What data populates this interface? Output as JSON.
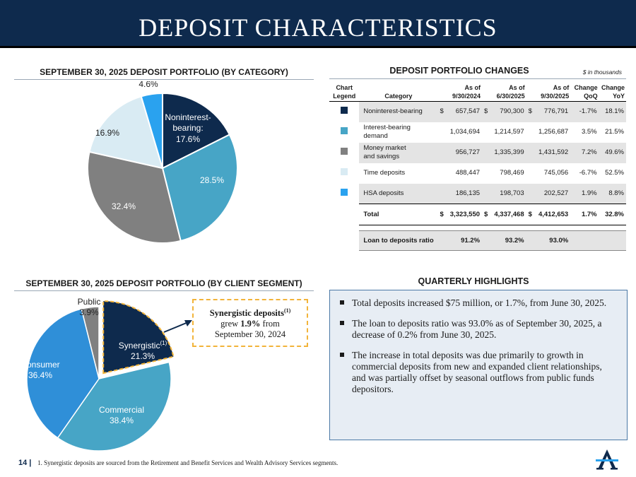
{
  "title": "DEPOSIT CHARACTERISTICS",
  "category_chart_title": "SEPTEMBER 30, 2025 DEPOSIT PORTFOLIO (BY CATEGORY)",
  "segment_chart_title": "SEPTEMBER 30, 2025 DEPOSIT PORTFOLIO (BY CLIENT SEGMENT)",
  "changes_title": "DEPOSIT PORTFOLIO CHANGES",
  "units_note": "$ in thousands",
  "highlights_title": "QUARTERLY HIGHLIGHTS",
  "chart_data": [
    {
      "type": "pie",
      "title": "SEPTEMBER 30, 2025 DEPOSIT PORTFOLIO (BY CATEGORY)",
      "slices": [
        {
          "label": "Noninterest-bearing:",
          "label_line1": "Noninterest-",
          "label_line2": "bearing:",
          "value_text": "17.6%",
          "value": 17.6,
          "color": "#0e2a4d"
        },
        {
          "label": "",
          "value_text": "28.5%",
          "value": 28.5,
          "color": "#47a5c6"
        },
        {
          "label": "",
          "value_text": "32.4%",
          "value": 32.4,
          "color": "#808080"
        },
        {
          "label": "",
          "value_text": "16.9%",
          "value": 16.9,
          "color": "#d9ebf3"
        },
        {
          "label": "",
          "value_text": "4.6%",
          "value": 4.6,
          "color": "#2aa2ef"
        }
      ]
    },
    {
      "type": "pie",
      "title": "SEPTEMBER 30, 2025 DEPOSIT PORTFOLIO (BY CLIENT SEGMENT)",
      "slices": [
        {
          "label": "Synergistic",
          "sup": "(1)",
          "value_text": "21.3%",
          "value": 21.3,
          "color": "#0e2a4d",
          "exploded": true
        },
        {
          "label": "Commercial",
          "value_text": "38.4%",
          "value": 38.4,
          "color": "#47a5c6"
        },
        {
          "label": "Consumer",
          "value_text": "36.4%",
          "value": 36.4,
          "color": "#2f8fd8"
        },
        {
          "label": "Public",
          "value_text": "3.9%",
          "value": 3.9,
          "color": "#808080"
        }
      ]
    }
  ],
  "callout": {
    "line1": "Synergistic deposits",
    "sup": "(1)",
    "line2_pre": "grew ",
    "line2_bold": "1.9%",
    "line2_post": " from",
    "line3": "September 30, 2024"
  },
  "table": {
    "headers": {
      "legend1": "Chart",
      "legend2": "Legend",
      "category": "Category",
      "c1a": "As of",
      "c1b": "9/30/2024",
      "c2a": "As of",
      "c2b": "6/30/2025",
      "c3a": "As of",
      "c3b": "9/30/2025",
      "c4a": "Change",
      "c4b": "QoQ",
      "c5a": "Change",
      "c5b": "YoY"
    },
    "rows": [
      {
        "color": "#0e2a4d",
        "cat1": "Noninterest-bearing",
        "cat2": "",
        "cur": "$",
        "v1": "657,547",
        "v2": "790,300",
        "v3": "776,791",
        "qoq": "-1.7%",
        "yoy": "18.1%"
      },
      {
        "color": "#47a5c6",
        "cat1": "Interest-bearing",
        "cat2": "demand",
        "cur": "",
        "v1": "1,034,694",
        "v2": "1,214,597",
        "v3": "1,256,687",
        "qoq": "3.5%",
        "yoy": "21.5%"
      },
      {
        "color": "#808080",
        "cat1": "Money market",
        "cat2": "and savings",
        "cur": "",
        "v1": "956,727",
        "v2": "1,335,399",
        "v3": "1,431,592",
        "qoq": "7.2%",
        "yoy": "49.6%"
      },
      {
        "color": "#d9ebf3",
        "cat1": "Time deposits",
        "cat2": "",
        "cur": "",
        "v1": "488,447",
        "v2": "798,469",
        "v3": "745,056",
        "qoq": "-6.7%",
        "yoy": "52.5%"
      },
      {
        "color": "#2aa2ef",
        "cat1": "HSA deposits",
        "cat2": "",
        "cur": "",
        "v1": "186,135",
        "v2": "198,703",
        "v3": "202,527",
        "qoq": "1.9%",
        "yoy": "8.8%"
      }
    ],
    "total": {
      "label": "Total",
      "cur": "$",
      "v1": "3,323,550",
      "v2": "4,337,468",
      "v3": "4,412,653",
      "qoq": "1.7%",
      "yoy": "32.8%"
    },
    "ltd": {
      "label": "Loan to deposits ratio",
      "v1": "91.2%",
      "v2": "93.2%",
      "v3": "93.0%"
    }
  },
  "highlights": [
    "Total deposits increased $75 million, or 1.7%, from June 30, 2025.",
    "The loan to deposits ratio was 93.0% as of September 30, 2025, a decrease of 0.2% from June 30, 2025.",
    "The increase in total deposits was due primarily to growth in commercial deposits from new and expanded client relationships, and was partially offset by seasonal outflows from public funds depositors."
  ],
  "footer": {
    "page": "14 |",
    "note": "1. Synergistic deposits are sourced from the Retirement and Benefit Services and Wealth Advisory Services segments."
  }
}
